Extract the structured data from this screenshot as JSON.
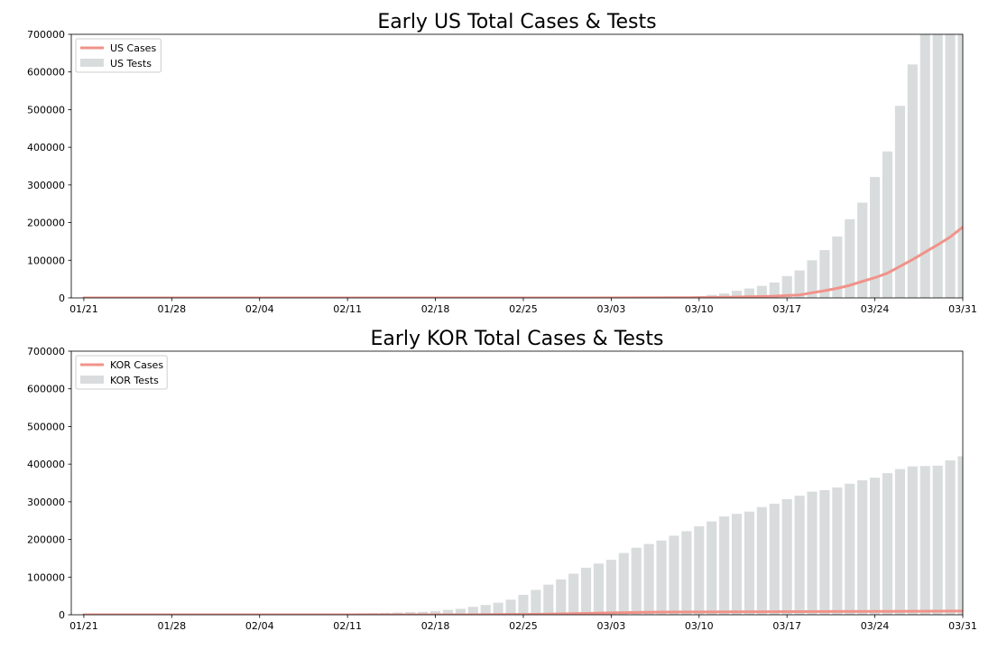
{
  "chart_data": [
    {
      "type": "bar",
      "title": "Early US Total Cases & Tests",
      "xlabel": "",
      "ylabel": "",
      "ylim": [
        0,
        700000
      ],
      "yticks": [
        "0",
        "100000",
        "200000",
        "300000",
        "400000",
        "500000",
        "600000",
        "700000"
      ],
      "x_start": "2020-01-21",
      "x_end": "2020-03-31",
      "xticks": [
        "01/21",
        "01/28",
        "02/04",
        "02/11",
        "02/18",
        "02/25",
        "03/03",
        "03/10",
        "03/17",
        "03/24",
        "03/31"
      ],
      "legend": {
        "placement": "upper-left",
        "items": [
          "US Cases",
          "US Tests"
        ]
      },
      "series": [
        {
          "name": "US Tests",
          "kind": "bar",
          "color": "#d9dcdd",
          "x": [
            "03/07",
            "03/08",
            "03/09",
            "03/10",
            "03/11",
            "03/12",
            "03/13",
            "03/14",
            "03/15",
            "03/16",
            "03/17",
            "03/18",
            "03/19",
            "03/20",
            "03/21",
            "03/22",
            "03/23",
            "03/24",
            "03/25",
            "03/26",
            "03/27",
            "03/28",
            "03/29",
            "03/30",
            "03/31"
          ],
          "values": [
            1500,
            2000,
            3000,
            5000,
            8000,
            12000,
            19000,
            25000,
            32000,
            41000,
            58000,
            73000,
            100000,
            127000,
            163000,
            209000,
            253000,
            321000,
            389000,
            510000,
            620000,
            700000,
            700000,
            700000,
            700000
          ]
        },
        {
          "name": "US Cases",
          "kind": "line",
          "color": "#f0938a",
          "x": [
            "01/21",
            "03/01",
            "03/05",
            "03/08",
            "03/10",
            "03/11",
            "03/12",
            "03/13",
            "03/14",
            "03/15",
            "03/16",
            "03/17",
            "03/18",
            "03/19",
            "03/20",
            "03/21",
            "03/22",
            "03/23",
            "03/24",
            "03/25",
            "03/26",
            "03/27",
            "03/28",
            "03/29",
            "03/30",
            "03/31"
          ],
          "values": [
            1,
            70,
            200,
            500,
            900,
            1300,
            1700,
            2200,
            2900,
            3500,
            4600,
            6400,
            7800,
            13700,
            19100,
            25500,
            33300,
            43800,
            53700,
            65800,
            83800,
            101700,
            121500,
            140900,
            161800,
            188200
          ]
        }
      ]
    },
    {
      "type": "bar",
      "title": "Early KOR Total Cases & Tests",
      "xlabel": "",
      "ylabel": "",
      "ylim": [
        0,
        700000
      ],
      "yticks": [
        "0",
        "100000",
        "200000",
        "300000",
        "400000",
        "500000",
        "600000",
        "700000"
      ],
      "x_start": "2020-01-21",
      "x_end": "2020-03-31",
      "xticks": [
        "01/21",
        "01/28",
        "02/04",
        "02/11",
        "02/18",
        "02/25",
        "03/03",
        "03/10",
        "03/17",
        "03/24",
        "03/31"
      ],
      "legend": {
        "placement": "upper-left",
        "items": [
          "KOR Cases",
          "KOR Tests"
        ]
      },
      "series": [
        {
          "name": "KOR Tests",
          "kind": "bar",
          "color": "#d9dcdd",
          "x": [
            "02/07",
            "02/08",
            "02/09",
            "02/10",
            "02/11",
            "02/12",
            "02/13",
            "02/14",
            "02/15",
            "02/16",
            "02/17",
            "02/18",
            "02/19",
            "02/20",
            "02/21",
            "02/22",
            "02/23",
            "02/24",
            "02/25",
            "02/26",
            "02/27",
            "02/28",
            "02/29",
            "03/01",
            "03/02",
            "03/03",
            "03/04",
            "03/05",
            "03/06",
            "03/07",
            "03/08",
            "03/09",
            "03/10",
            "03/11",
            "03/12",
            "03/13",
            "03/14",
            "03/15",
            "03/16",
            "03/17",
            "03/18",
            "03/19",
            "03/20",
            "03/21",
            "03/22",
            "03/23",
            "03/24",
            "03/25",
            "03/26",
            "03/27",
            "03/28",
            "03/29",
            "03/30",
            "03/31"
          ],
          "values": [
            1500,
            2000,
            2500,
            3000,
            3500,
            4000,
            4500,
            5000,
            6000,
            7000,
            8000,
            10000,
            13000,
            16000,
            21000,
            26000,
            32000,
            40000,
            53000,
            66000,
            80000,
            94000,
            109000,
            125000,
            136000,
            146000,
            164000,
            178000,
            188000,
            197000,
            210000,
            222000,
            235000,
            248000,
            261000,
            268000,
            274000,
            286000,
            295000,
            307000,
            316000,
            327000,
            331000,
            338000,
            348000,
            357000,
            364000,
            376000,
            387000,
            394000,
            395000,
            396000,
            410000,
            421000
          ]
        },
        {
          "name": "KOR Cases",
          "kind": "line",
          "color": "#f0938a",
          "x": [
            "01/21",
            "02/15",
            "02/18",
            "02/20",
            "02/22",
            "02/24",
            "02/26",
            "02/28",
            "03/01",
            "03/03",
            "03/05",
            "03/07",
            "03/10",
            "03/15",
            "03/20",
            "03/25",
            "03/31"
          ],
          "values": [
            1,
            28,
            31,
            104,
            433,
            833,
            1261,
            2337,
            3736,
            5186,
            6284,
            7134,
            7513,
            8162,
            8652,
            9137,
            9786
          ]
        }
      ]
    }
  ]
}
